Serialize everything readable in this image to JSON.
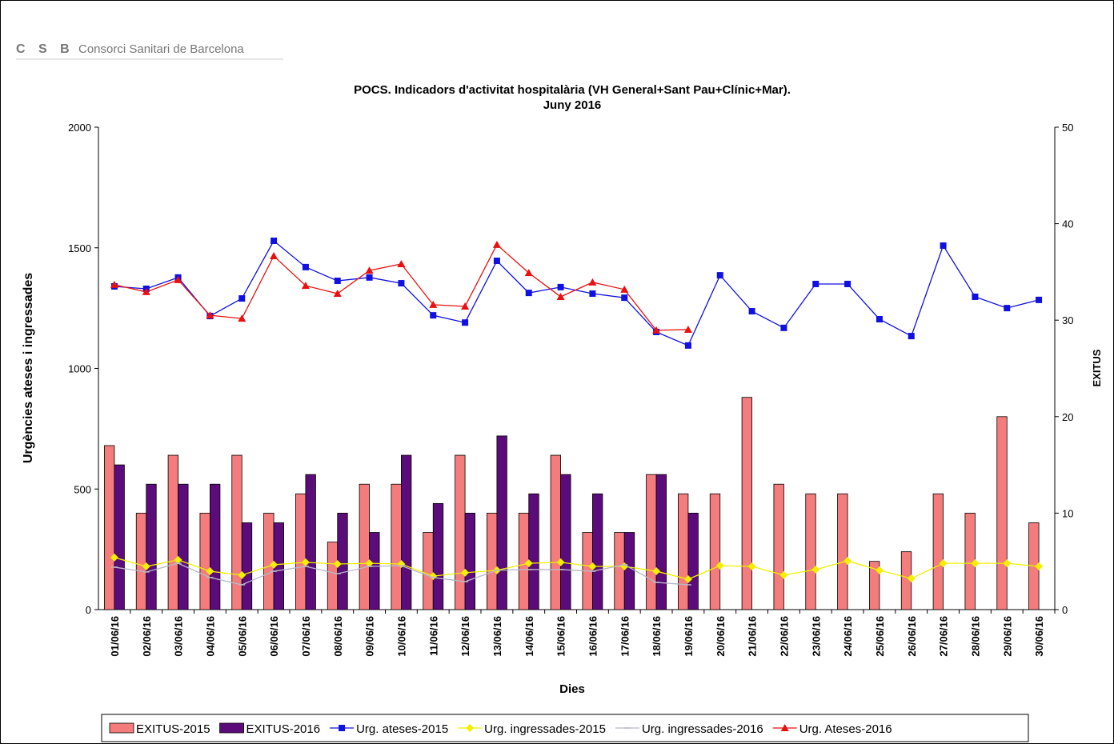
{
  "logo": {
    "mark": "C S B",
    "name": "Consorci Sanitari de Barcelona"
  },
  "chart_data": {
    "type": "bar",
    "title": "POCS.  Indicadors d'activitat hospitalària (VH General+Sant Pau+Clínic+Mar).",
    "subtitle": "Juny 2016",
    "x_label": "Dies",
    "y_label": "Urgències ateses i ingressades",
    "y2_label": "EXITUS",
    "categories": [
      "01/06/16",
      "02/06/16",
      "03/06/16",
      "04/06/16",
      "05/06/16",
      "06/06/16",
      "07/06/16",
      "08/06/16",
      "09/06/16",
      "10/06/16",
      "11/06/16",
      "12/06/16",
      "13/06/16",
      "14/06/16",
      "15/06/16",
      "16/06/16",
      "17/06/16",
      "18/06/16",
      "19/06/16",
      "20/06/16",
      "21/06/16",
      "22/06/16",
      "23/06/16",
      "24/06/16",
      "25/06/16",
      "26/06/16",
      "27/06/16",
      "28/06/16",
      "29/06/16",
      "30/06/16"
    ],
    "ylim": [
      0,
      2000
    ],
    "yticks": [
      0,
      500,
      1000,
      1500,
      2000
    ],
    "y2lim": [
      0,
      50
    ],
    "y2ticks": [
      0,
      10,
      20,
      30,
      40,
      50
    ],
    "series": [
      {
        "name": "EXITUS-2015",
        "type": "bar",
        "axis": "y2",
        "color": "#f47c7c",
        "values": [
          17,
          10,
          16,
          10,
          16,
          10,
          12,
          7,
          13,
          13,
          8,
          16,
          10,
          10,
          16,
          8,
          8,
          14,
          12,
          12,
          22,
          13,
          12,
          12,
          5,
          6,
          12,
          10,
          20,
          9
        ]
      },
      {
        "name": "EXITUS-2016",
        "type": "bar",
        "axis": "y2",
        "color": "#5c0b7a",
        "values": [
          15,
          13,
          13,
          13,
          9,
          9,
          14,
          10,
          8,
          16,
          11,
          10,
          18,
          12,
          14,
          12,
          8,
          14,
          10,
          null,
          null,
          null,
          null,
          null,
          null,
          null,
          null,
          null,
          null,
          null
        ]
      },
      {
        "name": "Urg. ateses-2015",
        "type": "line",
        "marker": "square",
        "color": "#1010e0",
        "values": [
          1340,
          1330,
          1377,
          1217,
          1290,
          1529,
          1420,
          1363,
          1377,
          1353,
          1220,
          1190,
          1446,
          1313,
          1337,
          1310,
          1293,
          1151,
          1095,
          1386,
          1237,
          1168,
          1350,
          1350,
          1204,
          1134,
          1509,
          1297,
          1250,
          1284
        ]
      },
      {
        "name": "Urg. ingressades-2015",
        "type": "line",
        "marker": "diamond",
        "color": "#f0f000",
        "values": [
          216,
          179,
          206,
          159,
          143,
          186,
          196,
          189,
          192,
          189,
          139,
          153,
          163,
          192,
          196,
          179,
          179,
          159,
          126,
          182,
          179,
          143,
          166,
          202,
          163,
          129,
          192,
          192,
          192,
          179
        ]
      },
      {
        "name": "Urg. ingressades-2016",
        "type": "line",
        "marker": "dash",
        "color": "#b8b8c8",
        "values": [
          176,
          156,
          192,
          133,
          103,
          159,
          179,
          149,
          179,
          182,
          133,
          116,
          163,
          166,
          166,
          159,
          186,
          113,
          103,
          null,
          null,
          null,
          null,
          null,
          null,
          null,
          null,
          null,
          null,
          null
        ]
      },
      {
        "name": "Urg. Ateses-2016",
        "type": "line",
        "marker": "triangle",
        "color": "#e81010",
        "values": [
          1347,
          1317,
          1367,
          1220,
          1207,
          1466,
          1343,
          1310,
          1406,
          1433,
          1264,
          1257,
          1513,
          1396,
          1297,
          1357,
          1327,
          1158,
          1161,
          null,
          null,
          null,
          null,
          null,
          null,
          null,
          null,
          null,
          null,
          null
        ]
      }
    ]
  }
}
